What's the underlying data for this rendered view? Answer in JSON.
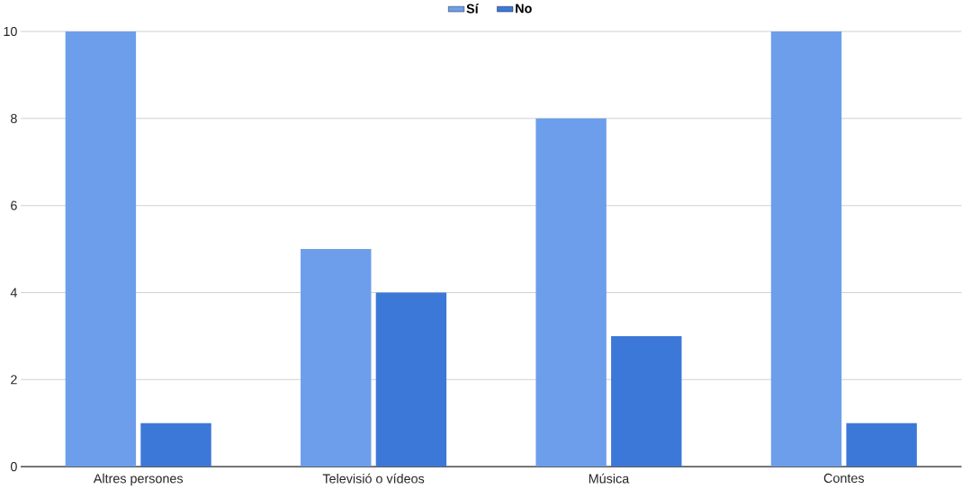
{
  "chart_data": {
    "type": "bar",
    "categories": [
      "Altres persones",
      "Televisió o vídeos",
      "Música",
      "Contes"
    ],
    "series": [
      {
        "name": "Sí",
        "color": "#6d9eeb",
        "values": [
          10,
          5,
          8,
          10
        ]
      },
      {
        "name": "No",
        "color": "#3c78d8",
        "values": [
          1,
          4,
          3,
          1
        ]
      }
    ],
    "ylim": [
      0,
      10
    ],
    "yticks": [
      0,
      2,
      4,
      6,
      8,
      10
    ],
    "grid": "y",
    "legend": "top"
  }
}
